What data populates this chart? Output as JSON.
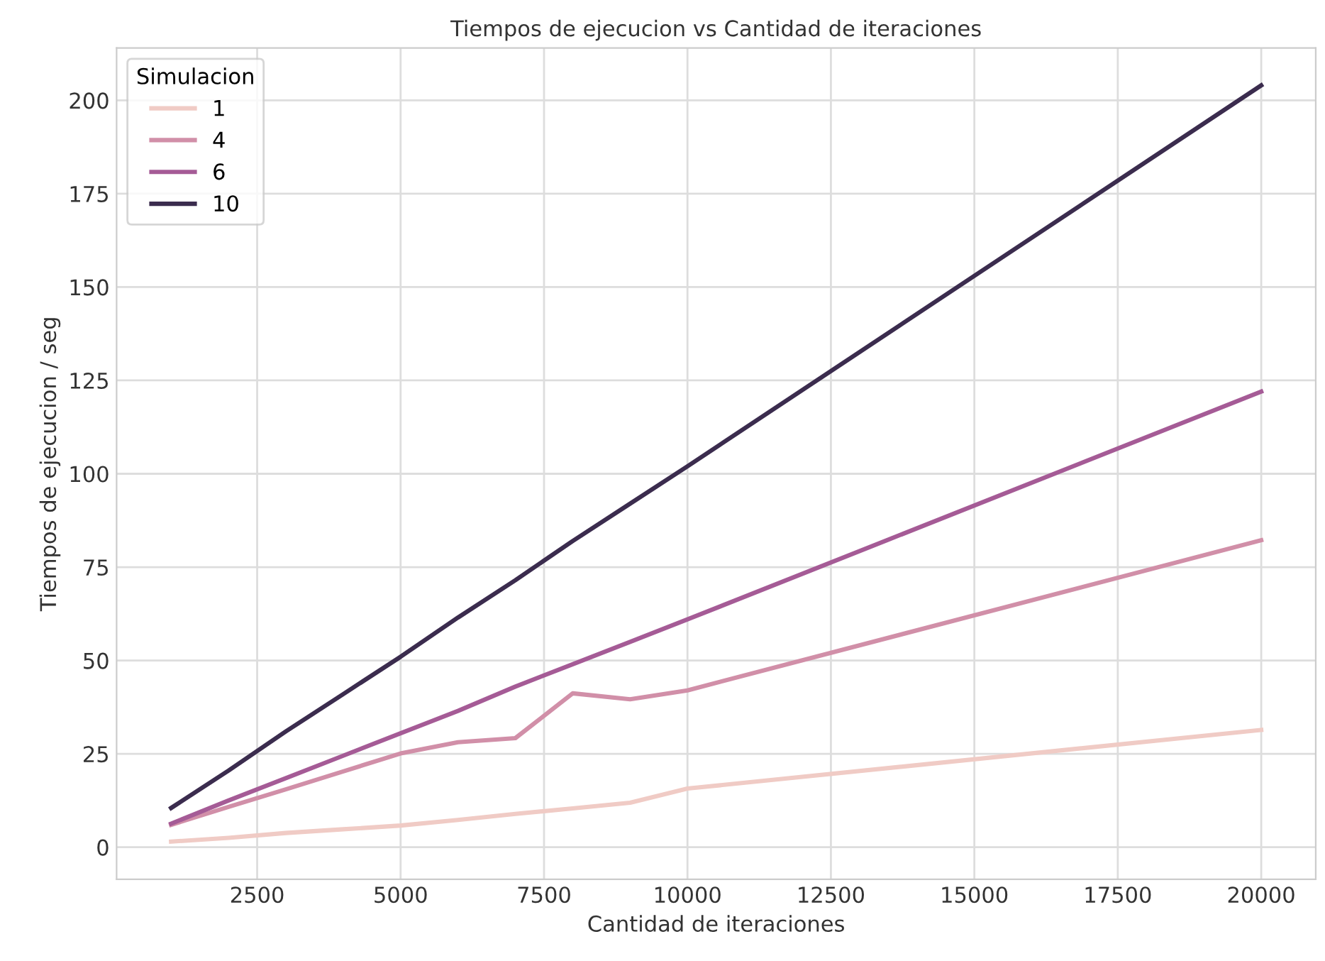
{
  "chart_data": {
    "type": "line",
    "title": "Tiempos de ejecucion vs Cantidad de iteraciones",
    "xlabel": "Cantidad de iteraciones",
    "ylabel": "Tiempos de ejecucion / seg",
    "legend_title": "Simulacion",
    "legend": "top left",
    "grid": true,
    "marker": "none",
    "line_style": "solid",
    "x": [
      1000,
      2000,
      3000,
      4000,
      5000,
      6000,
      7000,
      8000,
      9000,
      10000,
      20000
    ],
    "xlim": [
      50,
      20950
    ],
    "xticks": [
      2500,
      5000,
      7500,
      10000,
      12500,
      15000,
      17500,
      20000
    ],
    "ylim": [
      -8.6,
      214
    ],
    "yticks": [
      0,
      25,
      50,
      75,
      100,
      125,
      150,
      175,
      200
    ],
    "series": [
      {
        "name": "1",
        "color": "#f0cbc5",
        "values": [
          1.5,
          2.5,
          3.8,
          4.8,
          5.8,
          7.3,
          8.9,
          10.4,
          11.9,
          15.7,
          31.4
        ]
      },
      {
        "name": "4",
        "color": "#d18fa8",
        "values": [
          6,
          10.8,
          15.5,
          20.3,
          25.1,
          28.1,
          29.2,
          41.2,
          39.6,
          42,
          82.2
        ]
      },
      {
        "name": "6",
        "color": "#a55b96",
        "values": [
          6.3,
          12.5,
          18.5,
          24.5,
          30.5,
          36.5,
          43,
          49,
          55,
          61,
          122
        ]
      },
      {
        "name": "10",
        "color": "#3b2c4e",
        "values": [
          10.5,
          20.5,
          31,
          41,
          51,
          61.5,
          71.5,
          82,
          92,
          102,
          204
        ]
      }
    ]
  }
}
